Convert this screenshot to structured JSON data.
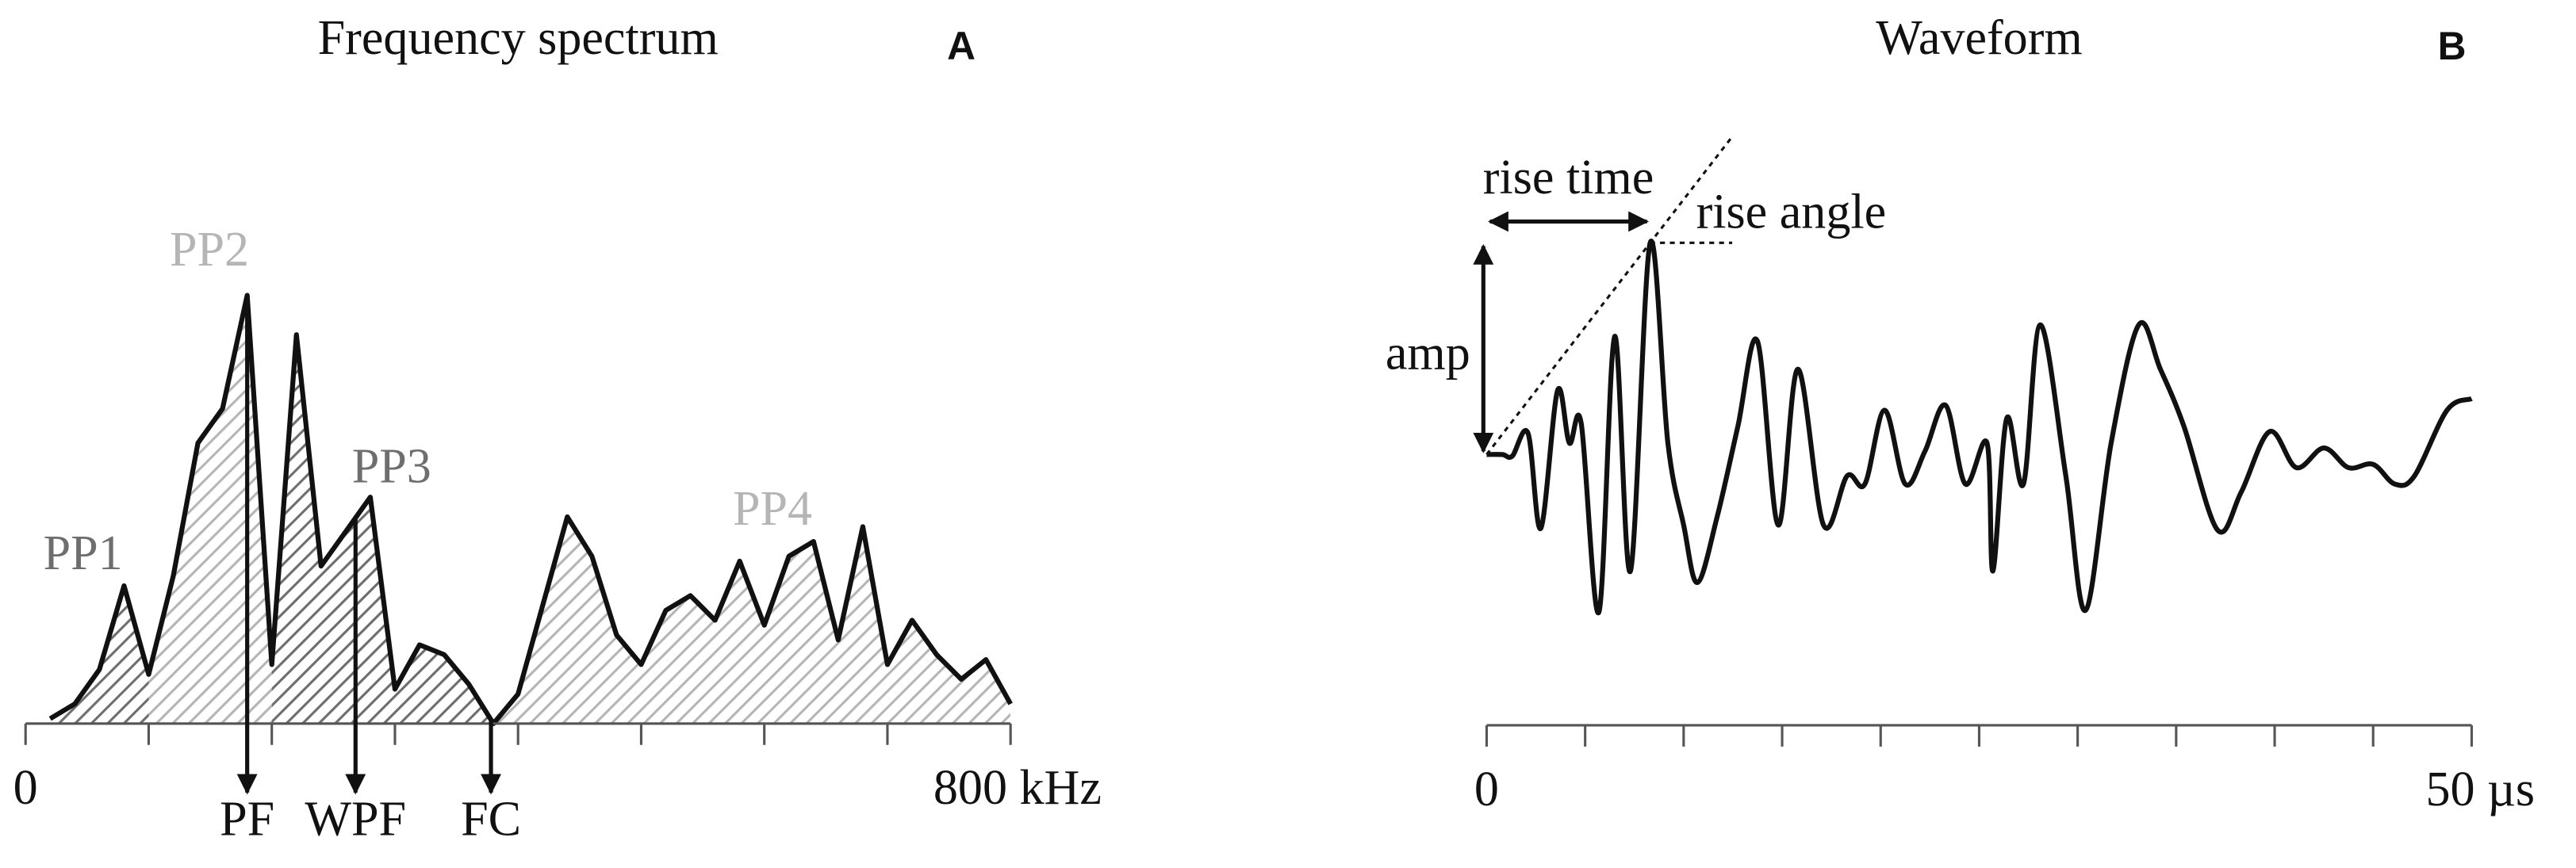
{
  "chart_data": [
    {
      "type": "area",
      "title": "Frequency spectrum",
      "panel": "A",
      "x": [
        20,
        40,
        60,
        80,
        100,
        120,
        140,
        160,
        180,
        200,
        220,
        240,
        260,
        280,
        300,
        320,
        340,
        360,
        380,
        400,
        420,
        440,
        460,
        480,
        500,
        520,
        540,
        560,
        580,
        600,
        620,
        640,
        660,
        680,
        700,
        720,
        740,
        760,
        780,
        800
      ],
      "series": [
        {
          "color": "#111111",
          "values": [
            1,
            4,
            11,
            28,
            10,
            30,
            57,
            64,
            87,
            12,
            79,
            32,
            39,
            46,
            7,
            16,
            14,
            8,
            0,
            6,
            24,
            42,
            34,
            18,
            12,
            23,
            26,
            21,
            33,
            20,
            34,
            37,
            17,
            40,
            12,
            21,
            14,
            9,
            13,
            4
          ]
        }
      ],
      "xlim": [
        0,
        800
      ],
      "ylim": [
        0,
        100
      ],
      "xticks": [
        0,
        {
          "value": 800,
          "label": "800 kHz"
        }
      ],
      "minor_xticks": [
        100,
        200,
        300,
        400,
        500,
        600,
        700
      ],
      "regions": [
        {
          "label": "PP1",
          "from": 20,
          "to": 100,
          "color": "#6e6e6e"
        },
        {
          "label": "PP2",
          "from": 100,
          "to": 200,
          "color": "#b5b5b5"
        },
        {
          "label": "PP3",
          "from": 200,
          "to": 380,
          "color": "#6e6e6e"
        },
        {
          "label": "PP4",
          "from": 380,
          "to": 800,
          "color": "#b5b5b5"
        }
      ],
      "markers": [
        {
          "text": "PF",
          "x": 180
        },
        {
          "text": "WPF",
          "x": 268
        },
        {
          "text": "FC",
          "x": 378
        }
      ]
    },
    {
      "type": "line",
      "title": "Waveform",
      "panel": "B",
      "x": [
        0,
        0.8,
        1.3,
        2.1,
        2.75,
        3.6,
        4.2,
        4.8,
        5.7,
        6.5,
        7.3,
        8.3,
        9.2,
        10,
        10.7,
        11.7,
        12.75,
        13.75,
        14.8,
        15.8,
        17.1,
        18.3,
        19.2,
        20.2,
        21.25,
        22.25,
        23.3,
        24.3,
        25.4,
        25.7,
        26.4,
        27.25,
        28.1,
        29.4,
        30.4,
        31.7,
        33.1,
        34.2,
        35.4,
        37.1,
        38.3,
        39.75,
        41.1,
        42.5,
        43.75,
        45,
        46.1,
        47.1,
        48.75,
        50
      ],
      "series": [
        {
          "color": "#111111",
          "values": [
            0,
            0,
            -0.1,
            1.3,
            -4.5,
            3.9,
            0.7,
            1.9,
            -9.6,
            7.2,
            -7.1,
            12.9,
            0.7,
            -4.3,
            -7.8,
            -3.8,
            1.7,
            6.9,
            -4.3,
            5.2,
            -4.3,
            -1.3,
            -1.8,
            2.7,
            -1.8,
            0.2,
            3,
            -1.8,
            0.7,
            -7.1,
            2.2,
            -1.8,
            7.9,
            -1.3,
            -9.5,
            0.7,
            7.9,
            5.2,
            1.7,
            -4.6,
            -2.3,
            1.4,
            -0.8,
            0.4,
            -0.8,
            -0.6,
            -1.8,
            -1.3,
            2.7,
            3.4
          ]
        }
      ],
      "xlim": [
        0,
        50
      ],
      "ylim": [
        -13,
        16
      ],
      "xticks": [
        0,
        {
          "value": 50,
          "label": "50 µs"
        }
      ],
      "minor_xticks": [
        5,
        10,
        15,
        20,
        25,
        30,
        35,
        40,
        45
      ],
      "annotations": {
        "rise_time": "rise time",
        "rise_angle": "rise angle",
        "amp": "amp"
      }
    }
  ]
}
